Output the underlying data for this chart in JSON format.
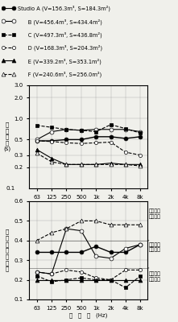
{
  "freqs": [
    63,
    125,
    250,
    500,
    1000,
    2000,
    4000,
    8000
  ],
  "freq_labels": [
    "63",
    "125",
    "250",
    "500",
    "1k",
    "2k",
    "4k",
    "8k"
  ],
  "rt_data": [
    [
      0.48,
      0.48,
      0.5,
      0.5,
      0.55,
      0.55,
      0.52,
      0.55
    ],
    [
      0.5,
      0.65,
      0.7,
      0.68,
      0.7,
      0.7,
      0.7,
      0.65
    ],
    [
      0.8,
      0.75,
      0.7,
      0.68,
      0.65,
      0.82,
      0.72,
      0.62
    ],
    [
      0.48,
      0.47,
      0.45,
      0.44,
      0.45,
      0.46,
      0.33,
      0.3
    ],
    [
      0.36,
      0.27,
      0.22,
      0.22,
      0.22,
      0.23,
      0.22,
      0.22
    ],
    [
      0.32,
      0.24,
      0.22,
      0.22,
      0.22,
      0.22,
      0.22,
      0.21
    ]
  ],
  "absorption_data": [
    [
      0.34,
      0.34,
      0.34,
      0.34,
      0.37,
      0.34,
      0.34,
      0.38
    ],
    [
      0.24,
      0.23,
      0.46,
      0.45,
      0.32,
      0.31,
      0.36,
      0.38
    ],
    [
      0.22,
      0.19,
      0.2,
      0.21,
      0.2,
      0.2,
      0.16,
      0.22
    ],
    [
      0.24,
      0.23,
      0.25,
      0.24,
      0.21,
      0.2,
      0.25,
      0.25
    ],
    [
      0.2,
      0.2,
      0.2,
      0.2,
      0.2,
      0.2,
      0.2,
      0.2
    ],
    [
      0.4,
      0.44,
      0.46,
      0.5,
      0.5,
      0.48,
      0.48,
      0.48
    ]
  ],
  "series_styles": [
    {
      "marker": "o",
      "mfc": "black",
      "ls": "-",
      "lw": 1.0,
      "ms": 3.5
    },
    {
      "marker": "o",
      "mfc": "white",
      "ls": "-",
      "lw": 0.8,
      "ms": 3.5
    },
    {
      "marker": "s",
      "mfc": "black",
      "ls": "--",
      "lw": 0.8,
      "ms": 3.0
    },
    {
      "marker": "o",
      "mfc": "white",
      "ls": "--",
      "lw": 0.8,
      "ms": 3.0
    },
    {
      "marker": "^",
      "mfc": "black",
      "ls": "-",
      "lw": 0.8,
      "ms": 3.5
    },
    {
      "marker": "^",
      "mfc": "white",
      "ls": "--",
      "lw": 0.8,
      "ms": 3.5
    }
  ],
  "legend_lines": [
    {
      "marker": "o",
      "mfc": "black",
      "ls": "-",
      "lw": 0.8,
      "ms": 3.5,
      "label": "Studio A (V=156.3m³, S=184.3m²)"
    },
    {
      "marker": "o",
      "mfc": "white",
      "ls": "-",
      "lw": 0.8,
      "ms": 3.5,
      "label": "      B (V=456.4m³, S=434.4m²)"
    },
    {
      "marker": "s",
      "mfc": "black",
      "ls": "--",
      "lw": 0.8,
      "ms": 3.0,
      "label": "      C (V=497.3m³, S=436.8m²)"
    },
    {
      "marker": "o",
      "mfc": "white",
      "ls": "--",
      "lw": 0.8,
      "ms": 3.0,
      "label": "      D (V=168.3m³, S=204.3m²)"
    },
    {
      "marker": "^",
      "mfc": "black",
      "ls": "-",
      "lw": 0.8,
      "ms": 3.5,
      "label": "      E (V=339.2m³, S=353.1m²)"
    },
    {
      "marker": "^",
      "mfc": "white",
      "ls": "--",
      "lw": 0.8,
      "ms": 3.5,
      "label": "      F (V=240.6m³, S=256.0m²)"
    }
  ],
  "rt_ylabel": "残\n響\n時\n間\n(s)",
  "abs_ylabel": "室\n内\n平\n均\n吸\n音\n率",
  "xlabel": "周   波   数   (Hz)",
  "dead_label": "デッドな\nスタジオ",
  "mid_label": "中間的な\nスタジオ",
  "live_label": "ライブな\nスタジオ",
  "bg": "#f0f0eb"
}
